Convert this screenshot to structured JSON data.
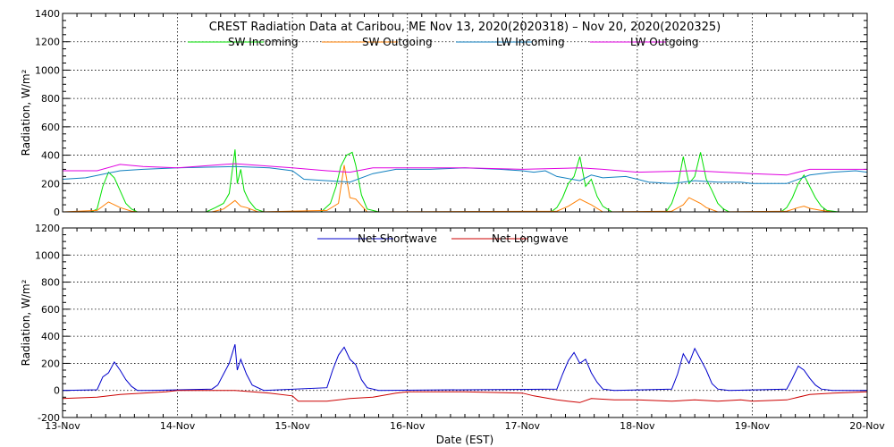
{
  "chart_data": [
    {
      "type": "line",
      "title": "CREST Radiation Data at Caribou, ME   Nov 13, 2020(2020318) – Nov 20, 2020(2020325)",
      "ylabel": "Radiation, W/m^2",
      "xlabel": "",
      "ylim": [
        0,
        1400
      ],
      "yticks": [
        0,
        200,
        400,
        600,
        800,
        1000,
        1200,
        1400
      ],
      "x_range": [
        0,
        7
      ],
      "grid": true,
      "legend_placement": "top",
      "series": [
        {
          "name": "SW Incoming",
          "color": "#00e000",
          "x": [
            0,
            0.25,
            0.3,
            0.35,
            0.4,
            0.45,
            0.5,
            0.55,
            0.6,
            0.65,
            0.75,
            1.25,
            1.33,
            1.4,
            1.45,
            1.5,
            1.52,
            1.55,
            1.58,
            1.62,
            1.68,
            1.75,
            2.25,
            2.33,
            2.38,
            2.42,
            2.47,
            2.52,
            2.55,
            2.6,
            2.65,
            2.75,
            4.25,
            4.3,
            4.35,
            4.4,
            4.45,
            4.5,
            4.55,
            4.6,
            4.65,
            4.7,
            4.78,
            5.25,
            5.3,
            5.35,
            5.4,
            5.45,
            5.5,
            5.55,
            5.6,
            5.65,
            5.7,
            5.75,
            5.8,
            6.25,
            6.3,
            6.35,
            6.4,
            6.45,
            6.5,
            6.55,
            6.6,
            6.65,
            6.75,
            7
          ],
          "y": [
            0,
            0,
            20,
            180,
            280,
            240,
            150,
            60,
            20,
            0,
            0,
            0,
            30,
            60,
            130,
            440,
            200,
            300,
            150,
            80,
            20,
            0,
            0,
            60,
            180,
            320,
            400,
            420,
            330,
            120,
            20,
            0,
            0,
            30,
            100,
            200,
            250,
            390,
            180,
            230,
            110,
            40,
            0,
            0,
            60,
            180,
            390,
            200,
            250,
            420,
            230,
            150,
            60,
            20,
            0,
            0,
            30,
            100,
            200,
            260,
            180,
            100,
            40,
            10,
            0,
            0
          ]
        },
        {
          "name": "SW Outgoing",
          "color": "#ff7f00",
          "x": [
            0,
            0.3,
            0.4,
            0.45,
            0.5,
            0.6,
            0.65,
            1.3,
            1.4,
            1.5,
            1.55,
            1.6,
            1.7,
            2.3,
            2.4,
            2.45,
            2.5,
            2.55,
            2.65,
            4.3,
            4.4,
            4.5,
            4.55,
            4.6,
            4.7,
            5.3,
            5.4,
            5.45,
            5.5,
            5.55,
            5.6,
            5.7,
            6.3,
            6.4,
            6.45,
            6.5,
            6.6,
            6.7,
            7
          ],
          "y": [
            0,
            10,
            70,
            50,
            30,
            5,
            0,
            0,
            20,
            80,
            40,
            30,
            0,
            10,
            60,
            330,
            100,
            90,
            0,
            5,
            40,
            90,
            70,
            50,
            0,
            5,
            50,
            100,
            80,
            60,
            30,
            0,
            5,
            30,
            40,
            25,
            10,
            0,
            0
          ]
        },
        {
          "name": "LW Incoming",
          "color": "#1080c0",
          "x": [
            0,
            0.2,
            0.5,
            0.7,
            1.0,
            1.5,
            1.8,
            2.0,
            2.1,
            2.3,
            2.5,
            2.7,
            2.9,
            3.2,
            3.5,
            3.8,
            4.0,
            4.1,
            4.2,
            4.3,
            4.5,
            4.6,
            4.7,
            4.9,
            5.0,
            5.1,
            5.3,
            5.5,
            5.7,
            5.9,
            6.0,
            6.1,
            6.3,
            6.5,
            6.7,
            6.9,
            7
          ],
          "y": [
            230,
            240,
            290,
            300,
            310,
            320,
            310,
            290,
            230,
            220,
            210,
            270,
            300,
            300,
            310,
            300,
            290,
            280,
            290,
            250,
            220,
            260,
            240,
            250,
            230,
            210,
            200,
            220,
            210,
            210,
            200,
            200,
            200,
            260,
            280,
            290,
            280
          ]
        },
        {
          "name": "LW Outgoing",
          "color": "#e000e0",
          "x": [
            0,
            0.3,
            0.5,
            0.7,
            1.0,
            1.5,
            2.0,
            2.3,
            2.5,
            2.7,
            3.0,
            3.5,
            4.0,
            4.5,
            4.7,
            5.0,
            5.5,
            6.0,
            6.3,
            6.5,
            7
          ],
          "y": [
            290,
            290,
            335,
            320,
            310,
            340,
            310,
            290,
            280,
            310,
            310,
            310,
            300,
            310,
            300,
            280,
            290,
            270,
            260,
            300,
            300
          ]
        }
      ]
    },
    {
      "type": "line",
      "title": "",
      "ylabel": "Radiation, W/m^2",
      "xlabel": "Date (EST)",
      "ylim": [
        -200,
        1200
      ],
      "yticks": [
        -200,
        0,
        200,
        400,
        600,
        800,
        1000,
        1200
      ],
      "x_range": [
        0,
        7
      ],
      "x_tick_labels": [
        "13-Nov",
        "14-Nov",
        "15-Nov",
        "16-Nov",
        "17-Nov",
        "18-Nov",
        "19-Nov",
        "20-Nov"
      ],
      "grid": true,
      "legend_placement": "top",
      "series": [
        {
          "name": "Net Shortwave",
          "color": "#0000cc",
          "x": [
            0,
            0.3,
            0.35,
            0.4,
            0.45,
            0.5,
            0.55,
            0.6,
            0.65,
            0.75,
            1.3,
            1.35,
            1.4,
            1.45,
            1.5,
            1.52,
            1.55,
            1.6,
            1.65,
            1.75,
            2.3,
            2.35,
            2.4,
            2.45,
            2.5,
            2.55,
            2.6,
            2.65,
            2.75,
            4.3,
            4.35,
            4.4,
            4.45,
            4.5,
            4.55,
            4.6,
            4.65,
            4.7,
            4.8,
            5.3,
            5.35,
            5.4,
            5.45,
            5.5,
            5.55,
            5.6,
            5.65,
            5.7,
            5.8,
            6.3,
            6.35,
            6.4,
            6.45,
            6.5,
            6.55,
            6.6,
            6.7,
            7
          ],
          "y": [
            0,
            5,
            100,
            130,
            210,
            150,
            80,
            30,
            0,
            0,
            10,
            40,
            120,
            200,
            340,
            150,
            230,
            120,
            40,
            0,
            20,
            150,
            260,
            320,
            230,
            190,
            80,
            20,
            0,
            10,
            120,
            220,
            280,
            200,
            230,
            130,
            60,
            10,
            0,
            10,
            120,
            270,
            200,
            310,
            230,
            150,
            50,
            10,
            0,
            10,
            90,
            180,
            150,
            90,
            40,
            10,
            0,
            0
          ]
        },
        {
          "name": "Net Longwave",
          "color": "#cc0000",
          "x": [
            0,
            0.3,
            0.5,
            0.7,
            0.9,
            1.0,
            1.5,
            1.8,
            2.0,
            2.05,
            2.3,
            2.5,
            2.7,
            2.9,
            3.0,
            3.5,
            4.0,
            4.1,
            4.3,
            4.5,
            4.6,
            4.8,
            5.0,
            5.3,
            5.5,
            5.7,
            5.9,
            6.0,
            6.3,
            6.5,
            6.7,
            7
          ],
          "y": [
            -60,
            -50,
            -30,
            -20,
            -10,
            0,
            0,
            -20,
            -40,
            -80,
            -80,
            -60,
            -50,
            -20,
            -10,
            -10,
            -20,
            -40,
            -70,
            -90,
            -60,
            -70,
            -70,
            -80,
            -70,
            -80,
            -70,
            -80,
            -70,
            -30,
            -20,
            -10
          ]
        }
      ]
    }
  ]
}
